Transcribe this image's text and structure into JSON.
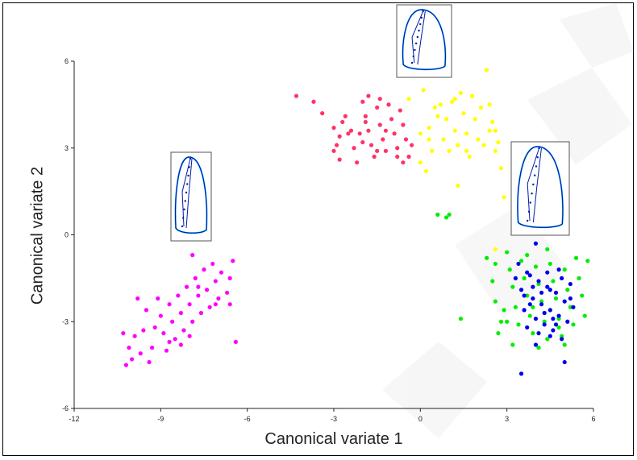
{
  "chart_data": {
    "type": "scatter",
    "title": "",
    "xlabel": "Canonical variate 1",
    "ylabel": "Canonical variate 2",
    "xlim": [
      -12,
      6
    ],
    "ylim": [
      -6,
      6
    ],
    "xticks": [
      "-12",
      "-9",
      "-6",
      "-3",
      "0",
      "3",
      "6"
    ],
    "yticks": [
      "-6",
      "-3",
      "0",
      "3",
      "6"
    ],
    "grid": false,
    "legend": "none",
    "series": [
      {
        "color": "#ff00ff",
        "points": [
          [
            -10.2,
            -4.5
          ],
          [
            -10.0,
            -4.3
          ],
          [
            -10.1,
            -3.9
          ],
          [
            -9.9,
            -3.5
          ],
          [
            -9.7,
            -4.1
          ],
          [
            -9.6,
            -3.3
          ],
          [
            -9.5,
            -2.6
          ],
          [
            -9.4,
            -4.4
          ],
          [
            -9.3,
            -3.9
          ],
          [
            -9.2,
            -3.2
          ],
          [
            -9.0,
            -2.8
          ],
          [
            -8.9,
            -3.4
          ],
          [
            -8.8,
            -4.0
          ],
          [
            -8.7,
            -2.4
          ],
          [
            -8.6,
            -3.0
          ],
          [
            -8.5,
            -3.6
          ],
          [
            -8.4,
            -2.1
          ],
          [
            -8.3,
            -2.7
          ],
          [
            -8.2,
            -3.3
          ],
          [
            -8.1,
            -1.8
          ],
          [
            -8.0,
            -2.4
          ],
          [
            -7.9,
            -3.0
          ],
          [
            -7.8,
            -1.5
          ],
          [
            -7.7,
            -2.1
          ],
          [
            -7.6,
            -2.7
          ],
          [
            -7.5,
            -1.2
          ],
          [
            -7.4,
            -1.9
          ],
          [
            -7.3,
            -2.5
          ],
          [
            -7.2,
            -1.0
          ],
          [
            -7.1,
            -1.6
          ],
          [
            -7.0,
            -2.2
          ],
          [
            -6.9,
            -1.3
          ],
          [
            -6.7,
            -2.0
          ],
          [
            -6.6,
            -2.4
          ],
          [
            -6.5,
            -0.9
          ],
          [
            -6.4,
            -3.7
          ],
          [
            -8.3,
            -3.8
          ],
          [
            -9.8,
            -2.2
          ],
          [
            -7.9,
            -0.7
          ],
          [
            -6.6,
            -1.5
          ],
          [
            -10.3,
            -3.4
          ],
          [
            -8.0,
            -3.5
          ],
          [
            -7.7,
            -1.8
          ],
          [
            -9.1,
            -2.2
          ],
          [
            -8.7,
            -3.7
          ],
          [
            -7.1,
            -2.4
          ]
        ]
      },
      {
        "color": "#ff3366",
        "points": [
          [
            -4.3,
            4.8
          ],
          [
            -3.7,
            4.6
          ],
          [
            -3.4,
            4.2
          ],
          [
            -3.0,
            3.7
          ],
          [
            -2.9,
            3.1
          ],
          [
            -2.8,
            2.6
          ],
          [
            -2.6,
            4.1
          ],
          [
            -2.5,
            3.5
          ],
          [
            -2.3,
            3.0
          ],
          [
            -2.2,
            2.5
          ],
          [
            -2.0,
            4.6
          ],
          [
            -1.9,
            4.1
          ],
          [
            -1.8,
            3.6
          ],
          [
            -1.7,
            3.1
          ],
          [
            -1.6,
            2.7
          ],
          [
            -1.5,
            4.4
          ],
          [
            -1.4,
            3.8
          ],
          [
            -1.3,
            3.3
          ],
          [
            -1.2,
            2.9
          ],
          [
            -1.1,
            4.5
          ],
          [
            -1.0,
            4.0
          ],
          [
            -0.9,
            3.5
          ],
          [
            -0.8,
            3.0
          ],
          [
            -0.7,
            4.3
          ],
          [
            -0.6,
            3.8
          ],
          [
            -0.5,
            3.3
          ],
          [
            -0.4,
            2.7
          ],
          [
            -2.7,
            3.9
          ],
          [
            -2.0,
            3.2
          ],
          [
            -1.5,
            2.9
          ],
          [
            -1.8,
            4.8
          ],
          [
            -0.6,
            2.5
          ],
          [
            -3.0,
            2.9
          ],
          [
            -2.4,
            3.6
          ],
          [
            -1.2,
            3.6
          ],
          [
            -0.8,
            2.7
          ],
          [
            -1.9,
            3.9
          ],
          [
            -2.8,
            3.4
          ],
          [
            -1.4,
            4.7
          ],
          [
            -0.3,
            3.1
          ],
          [
            -2.1,
            3.5
          ]
        ]
      },
      {
        "color": "#ffff00",
        "points": [
          [
            -0.4,
            4.7
          ],
          [
            0.1,
            5.0
          ],
          [
            0.3,
            3.7
          ],
          [
            0.4,
            2.9
          ],
          [
            0.6,
            4.1
          ],
          [
            0.7,
            4.5
          ],
          [
            0.8,
            3.3
          ],
          [
            0.9,
            4.0
          ],
          [
            1.0,
            2.9
          ],
          [
            1.1,
            4.6
          ],
          [
            1.2,
            3.6
          ],
          [
            1.3,
            3.1
          ],
          [
            1.4,
            4.9
          ],
          [
            1.5,
            4.2
          ],
          [
            1.6,
            3.5
          ],
          [
            1.7,
            2.7
          ],
          [
            1.8,
            4.8
          ],
          [
            1.9,
            4.0
          ],
          [
            2.0,
            3.3
          ],
          [
            2.1,
            4.4
          ],
          [
            2.2,
            3.1
          ],
          [
            2.3,
            5.7
          ],
          [
            2.4,
            3.6
          ],
          [
            2.5,
            3.9
          ],
          [
            2.6,
            2.9
          ],
          [
            2.7,
            3.2
          ],
          [
            2.8,
            2.3
          ],
          [
            0.0,
            2.5
          ],
          [
            0.2,
            2.2
          ],
          [
            1.3,
            1.7
          ],
          [
            0.3,
            3.3
          ],
          [
            1.2,
            4.7
          ],
          [
            0.5,
            4.4
          ],
          [
            2.4,
            4.5
          ],
          [
            1.6,
            2.9
          ],
          [
            2.6,
            3.6
          ],
          [
            2.9,
            1.3
          ],
          [
            2.6,
            -0.5
          ],
          [
            0.0,
            3.5
          ]
        ]
      },
      {
        "color": "#00ee00",
        "points": [
          [
            0.6,
            0.7
          ],
          [
            0.9,
            0.6
          ],
          [
            1.0,
            0.7
          ],
          [
            2.3,
            -0.8
          ],
          [
            2.5,
            -1.6
          ],
          [
            2.6,
            -2.3
          ],
          [
            2.8,
            -3.0
          ],
          [
            3.0,
            -0.6
          ],
          [
            3.1,
            -1.2
          ],
          [
            3.2,
            -1.8
          ],
          [
            3.3,
            -2.5
          ],
          [
            3.4,
            -3.1
          ],
          [
            3.5,
            -0.9
          ],
          [
            3.6,
            -1.5
          ],
          [
            3.7,
            -2.1
          ],
          [
            3.8,
            -2.8
          ],
          [
            3.9,
            -3.4
          ],
          [
            4.0,
            -1.1
          ],
          [
            4.1,
            -1.7
          ],
          [
            4.2,
            -2.3
          ],
          [
            4.3,
            -3.0
          ],
          [
            4.4,
            -3.6
          ],
          [
            4.5,
            -1.0
          ],
          [
            4.6,
            -1.6
          ],
          [
            4.7,
            -2.2
          ],
          [
            4.8,
            -2.9
          ],
          [
            4.9,
            -3.5
          ],
          [
            5.0,
            -1.2
          ],
          [
            5.1,
            -1.9
          ],
          [
            5.2,
            -2.5
          ],
          [
            5.3,
            -3.1
          ],
          [
            5.4,
            -0.8
          ],
          [
            5.5,
            -1.5
          ],
          [
            5.6,
            -2.1
          ],
          [
            5.7,
            -2.8
          ],
          [
            5.8,
            -0.9
          ],
          [
            1.4,
            -2.9
          ],
          [
            2.7,
            -3.4
          ],
          [
            3.2,
            -3.8
          ],
          [
            4.1,
            -3.9
          ],
          [
            3.7,
            -0.7
          ],
          [
            2.9,
            -2.6
          ],
          [
            5.0,
            -3.8
          ],
          [
            4.4,
            -0.5
          ],
          [
            3.0,
            -3.0
          ],
          [
            2.6,
            -1.0
          ],
          [
            3.9,
            -2.5
          ],
          [
            4.8,
            -3.2
          ]
        ]
      },
      {
        "color": "#0000ee",
        "points": [
          [
            3.4,
            -1.0
          ],
          [
            3.5,
            -1.9
          ],
          [
            3.6,
            -2.6
          ],
          [
            3.7,
            -3.2
          ],
          [
            3.8,
            -1.4
          ],
          [
            3.9,
            -2.2
          ],
          [
            4.0,
            -2.9
          ],
          [
            4.1,
            -1.6
          ],
          [
            4.2,
            -2.4
          ],
          [
            4.3,
            -3.1
          ],
          [
            4.4,
            -1.8
          ],
          [
            4.5,
            -2.6
          ],
          [
            4.6,
            -3.3
          ],
          [
            4.7,
            -2.0
          ],
          [
            4.8,
            -2.8
          ],
          [
            4.9,
            -1.5
          ],
          [
            5.0,
            -2.3
          ],
          [
            5.1,
            -3.0
          ],
          [
            5.2,
            -1.7
          ],
          [
            5.3,
            -2.5
          ],
          [
            3.3,
            -1.5
          ],
          [
            3.6,
            -2.1
          ],
          [
            4.0,
            -3.8
          ],
          [
            4.4,
            -1.3
          ],
          [
            4.5,
            -3.5
          ],
          [
            4.9,
            -3.6
          ],
          [
            5.0,
            -4.4
          ],
          [
            3.5,
            -4.8
          ],
          [
            4.0,
            -0.3
          ],
          [
            4.6,
            -2.9
          ],
          [
            3.9,
            -1.8
          ],
          [
            4.2,
            -2.0
          ],
          [
            4.8,
            -1.2
          ],
          [
            3.8,
            -2.4
          ],
          [
            4.3,
            -2.7
          ],
          [
            4.7,
            -3.1
          ],
          [
            5.2,
            -2.2
          ],
          [
            3.7,
            -1.3
          ],
          [
            4.1,
            -3.4
          ],
          [
            4.5,
            -1.9
          ]
        ]
      }
    ]
  },
  "insets": [
    {
      "name": "shape-inset-pink"
    },
    {
      "name": "shape-inset-yellow"
    },
    {
      "name": "shape-inset-green"
    }
  ],
  "colors": {
    "axis": "#222222",
    "outline": "#001aa8",
    "outline_light": "#33ccff"
  }
}
